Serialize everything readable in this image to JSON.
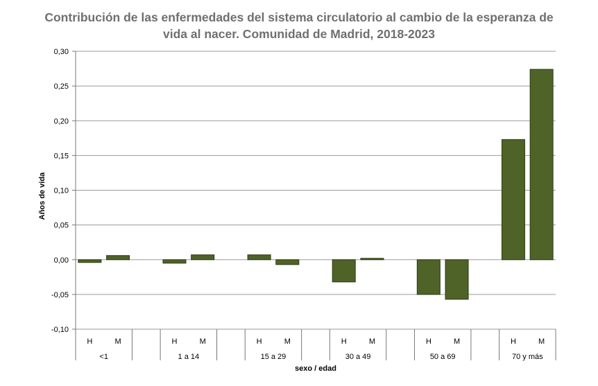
{
  "title_line1": "Contribución de las enfermedades del sistema circulatorio al cambio de la esperanza de",
  "title_line2": "vida al nacer. Comunidad de Madrid, 2018-2023",
  "chart_data": {
    "type": "bar",
    "title": "Contribución de las enfermedades del sistema circulatorio al cambio de la esperanza de vida al nacer. Comunidad de Madrid, 2018-2023",
    "xlabel": "sexo / edad",
    "ylabel": "Años de vida",
    "ylim": [
      -0.1,
      0.3
    ],
    "yticks": [
      "0,30",
      "0,25",
      "0,20",
      "0,15",
      "0,10",
      "0,05",
      "0,00",
      "-0,05",
      "-0,10"
    ],
    "ytick_values": [
      0.3,
      0.25,
      0.2,
      0.15,
      0.1,
      0.05,
      0.0,
      -0.05,
      -0.1
    ],
    "grid": true,
    "bar_color": "#4f6228",
    "groups": [
      "<1",
      "1 a 14",
      "15 a 29",
      "30 a 49",
      "50 a 69",
      "70 y más"
    ],
    "sex_labels": [
      "H",
      "M"
    ],
    "categories": [
      "H <1",
      "M <1",
      "H 1 a 14",
      "M 1 a 14",
      "H 15 a 29",
      "M 15 a 29",
      "H 30 a 49",
      "M 30 a 49",
      "H 50 a 69",
      "M 50 a 69",
      "H 70 y más",
      "M 70 y más"
    ],
    "values": [
      -0.004,
      0.006,
      -0.005,
      0.007,
      0.007,
      -0.007,
      -0.032,
      0.002,
      -0.05,
      -0.057,
      0.173,
      0.274
    ]
  }
}
